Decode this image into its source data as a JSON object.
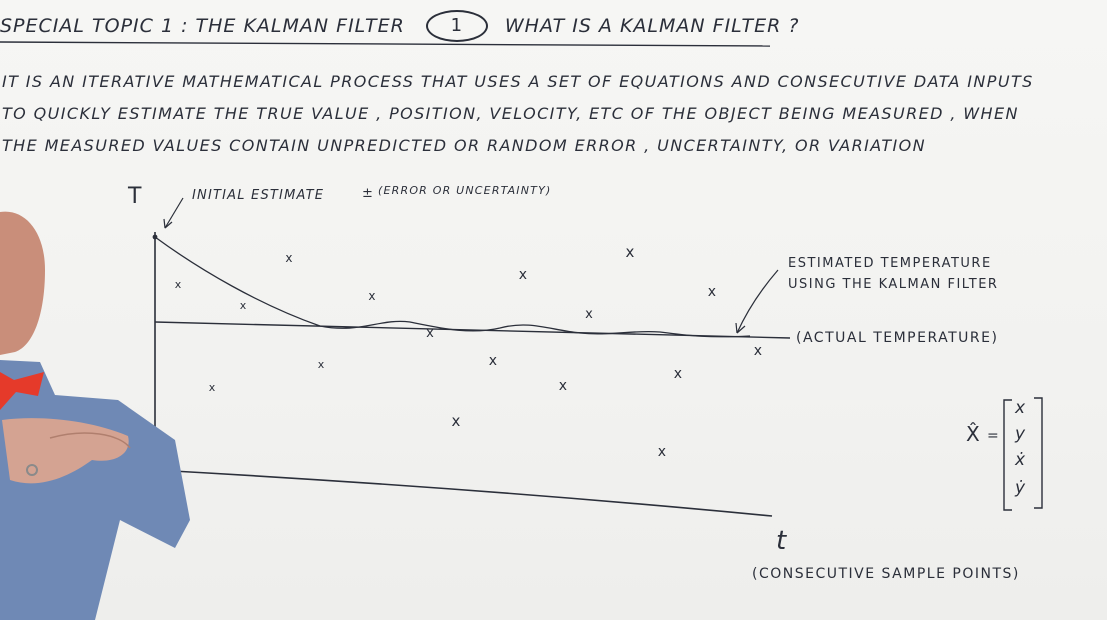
{
  "title": {
    "left": "SPECIAL TOPIC 1 : THE KALMAN FILTER",
    "circled": "1",
    "right": "WHAT IS A KALMAN FILTER ?"
  },
  "paragraph": {
    "line1": "IT IS AN ITERATIVE MATHEMATICAL PROCESS THAT USES A SET OF EQUATIONS AND CONSECUTIVE DATA INPUTS",
    "line2": "TO QUICKLY ESTIMATE THE TRUE VALUE , POSITION, VELOCITY, ETC OF THE OBJECT BEING MEASURED , WHEN",
    "line3": "THE MEASURED VALUES CONTAIN UNPREDICTED OR RANDOM ERROR , UNCERTAINTY, OR VARIATION"
  },
  "graph": {
    "y_axis_label": "T",
    "initial_estimate": "INITIAL ESTIMATE",
    "plus_minus": "±",
    "error_note": "(ERROR OR UNCERTAINTY)",
    "estimated_line1": "ESTIMATED TEMPERATURE",
    "estimated_line2": "USING THE KALMAN FILTER",
    "actual_label": "(ACTUAL TEMPERATURE)",
    "x_axis_label": "t",
    "x_axis_note": "(CONSECUTIVE SAMPLE POINTS)",
    "measurement_marker": "x"
  },
  "state_vector": {
    "symbol": "X̂",
    "equals": "=",
    "entries": [
      "x",
      "y",
      "ẋ",
      "ẏ"
    ]
  },
  "colors": {
    "board": "#f4f4f2",
    "ink": "#2b2f3a",
    "bowtie": "#e53a2a",
    "shirt": "#6f89b5"
  }
}
